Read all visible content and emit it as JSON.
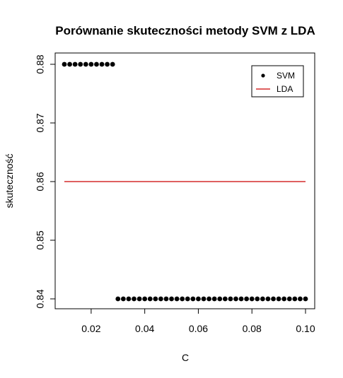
{
  "chart_data": {
    "type": "scatter",
    "title": "Porównanie skuteczności metody SVM z LDA",
    "xlabel": "C",
    "ylabel": "skuteczność",
    "xlim": [
      0.01,
      0.1
    ],
    "ylim": [
      0.84,
      0.88
    ],
    "x_ticks": [
      0.02,
      0.04,
      0.06,
      0.08,
      0.1
    ],
    "x_tick_labels": [
      "0.02",
      "0.04",
      "0.06",
      "0.08",
      "0.10"
    ],
    "y_ticks": [
      0.84,
      0.85,
      0.86,
      0.87,
      0.88
    ],
    "y_tick_labels": [
      "0.84",
      "0.85",
      "0.86",
      "0.87",
      "0.88"
    ],
    "grid": false,
    "legend_placement": "top-right",
    "series": [
      {
        "name": "SVM",
        "kind": "points",
        "color": "#000000",
        "points": [
          [
            0.01,
            0.88
          ],
          [
            0.012,
            0.88
          ],
          [
            0.014,
            0.88
          ],
          [
            0.016,
            0.88
          ],
          [
            0.018,
            0.88
          ],
          [
            0.02,
            0.88
          ],
          [
            0.022,
            0.88
          ],
          [
            0.024,
            0.88
          ],
          [
            0.026,
            0.88
          ],
          [
            0.028,
            0.88
          ],
          [
            0.03,
            0.84
          ],
          [
            0.032,
            0.84
          ],
          [
            0.034,
            0.84
          ],
          [
            0.036,
            0.84
          ],
          [
            0.038,
            0.84
          ],
          [
            0.04,
            0.84
          ],
          [
            0.042,
            0.84
          ],
          [
            0.044,
            0.84
          ],
          [
            0.046,
            0.84
          ],
          [
            0.048,
            0.84
          ],
          [
            0.05,
            0.84
          ],
          [
            0.052,
            0.84
          ],
          [
            0.054,
            0.84
          ],
          [
            0.056,
            0.84
          ],
          [
            0.058,
            0.84
          ],
          [
            0.06,
            0.84
          ],
          [
            0.062,
            0.84
          ],
          [
            0.064,
            0.84
          ],
          [
            0.066,
            0.84
          ],
          [
            0.068,
            0.84
          ],
          [
            0.07,
            0.84
          ],
          [
            0.072,
            0.84
          ],
          [
            0.074,
            0.84
          ],
          [
            0.076,
            0.84
          ],
          [
            0.078,
            0.84
          ],
          [
            0.08,
            0.84
          ],
          [
            0.082,
            0.84
          ],
          [
            0.084,
            0.84
          ],
          [
            0.086,
            0.84
          ],
          [
            0.088,
            0.84
          ],
          [
            0.09,
            0.84
          ],
          [
            0.092,
            0.84
          ],
          [
            0.094,
            0.84
          ],
          [
            0.096,
            0.84
          ],
          [
            0.098,
            0.84
          ],
          [
            0.1,
            0.84
          ]
        ]
      },
      {
        "name": "LDA",
        "kind": "line",
        "color": "#cc0000",
        "points": [
          [
            0.01,
            0.86
          ],
          [
            0.1,
            0.86
          ]
        ]
      }
    ]
  }
}
